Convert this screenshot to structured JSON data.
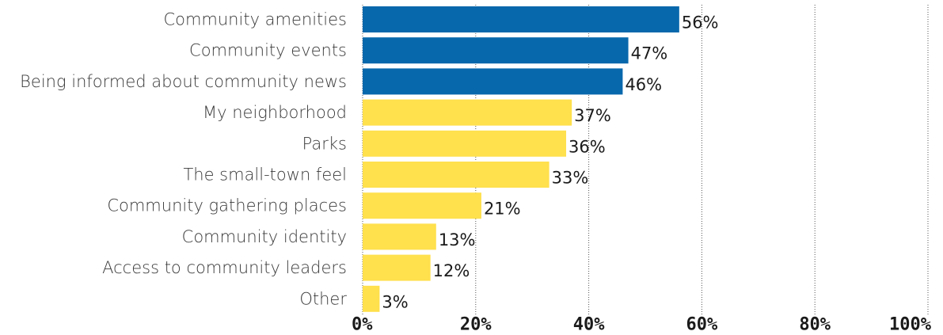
{
  "chart_data": {
    "type": "bar",
    "orientation": "horizontal",
    "categories": [
      "Community amenities",
      "Community events",
      "Being informed about community news",
      "My neighborhood",
      "Parks",
      "The small-town feel",
      "Community gathering places",
      "Community identity",
      "Access to community leaders",
      "Other"
    ],
    "values": [
      56,
      47,
      46,
      37,
      36,
      33,
      21,
      13,
      12,
      3
    ],
    "value_labels": [
      "56%",
      "47%",
      "46%",
      "37%",
      "36%",
      "33%",
      "21%",
      "13%",
      "12%",
      "3%"
    ],
    "highlight_count": 3,
    "colors": {
      "highlight": "#0868ac",
      "default": "#ffe04d"
    },
    "title": "",
    "xlabel": "",
    "ylabel": "",
    "xlim": [
      0,
      100
    ],
    "x_ticks": [
      0,
      20,
      40,
      60,
      80,
      100
    ],
    "x_tick_labels": [
      "0%",
      "20%",
      "40%",
      "60%",
      "80%",
      "100%"
    ],
    "grid": "vertical-dotted",
    "legend": "none"
  }
}
